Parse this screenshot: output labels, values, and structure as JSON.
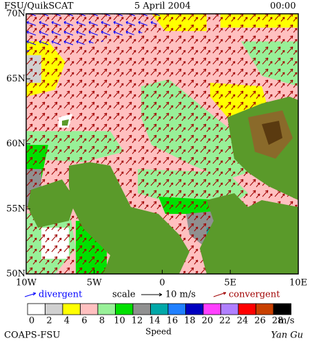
{
  "header": {
    "title": "FSU/QuikSCAT",
    "date": "5 April 2004",
    "time": "00:00"
  },
  "map": {
    "lat_range": [
      50,
      70
    ],
    "lon_range": [
      -10,
      10
    ],
    "lat_ticks": [
      {
        "value": 70,
        "label": "70N"
      },
      {
        "value": 65,
        "label": "65N"
      },
      {
        "value": 60,
        "label": "60N"
      },
      {
        "value": 55,
        "label": "55N"
      },
      {
        "value": 50,
        "label": "50N"
      }
    ],
    "lon_ticks": [
      {
        "value": -10,
        "label": "10W"
      },
      {
        "value": -5,
        "label": "5W"
      },
      0,
      {
        "value": 5,
        "label": "5E"
      },
      {
        "value": 10,
        "label": "10E"
      }
    ]
  },
  "legend": {
    "divergent": "divergent",
    "divergent_color": "#0000ff",
    "scale": "scale",
    "scale_value": "10 m/s",
    "convergent": "convergent",
    "convergent_color": "#a00000"
  },
  "colorbar": {
    "ticks": [
      0,
      2,
      4,
      6,
      8,
      10,
      12,
      14,
      16,
      18,
      20,
      22,
      24,
      26,
      28
    ],
    "colors": [
      "#ffffff",
      "#d0d0d0",
      "#ffff00",
      "#ffc0c0",
      "#98f098",
      "#00e000",
      "#909090",
      "#00a8a8",
      "#2080ff",
      "#0000c0",
      "#ff40ff",
      "#b080ff",
      "#ff0000",
      "#c84000",
      "#000000"
    ],
    "unit": "m/s",
    "label": "Speed"
  },
  "footer": {
    "left": "COAPS-FSU",
    "right": "Yan Gu"
  }
}
